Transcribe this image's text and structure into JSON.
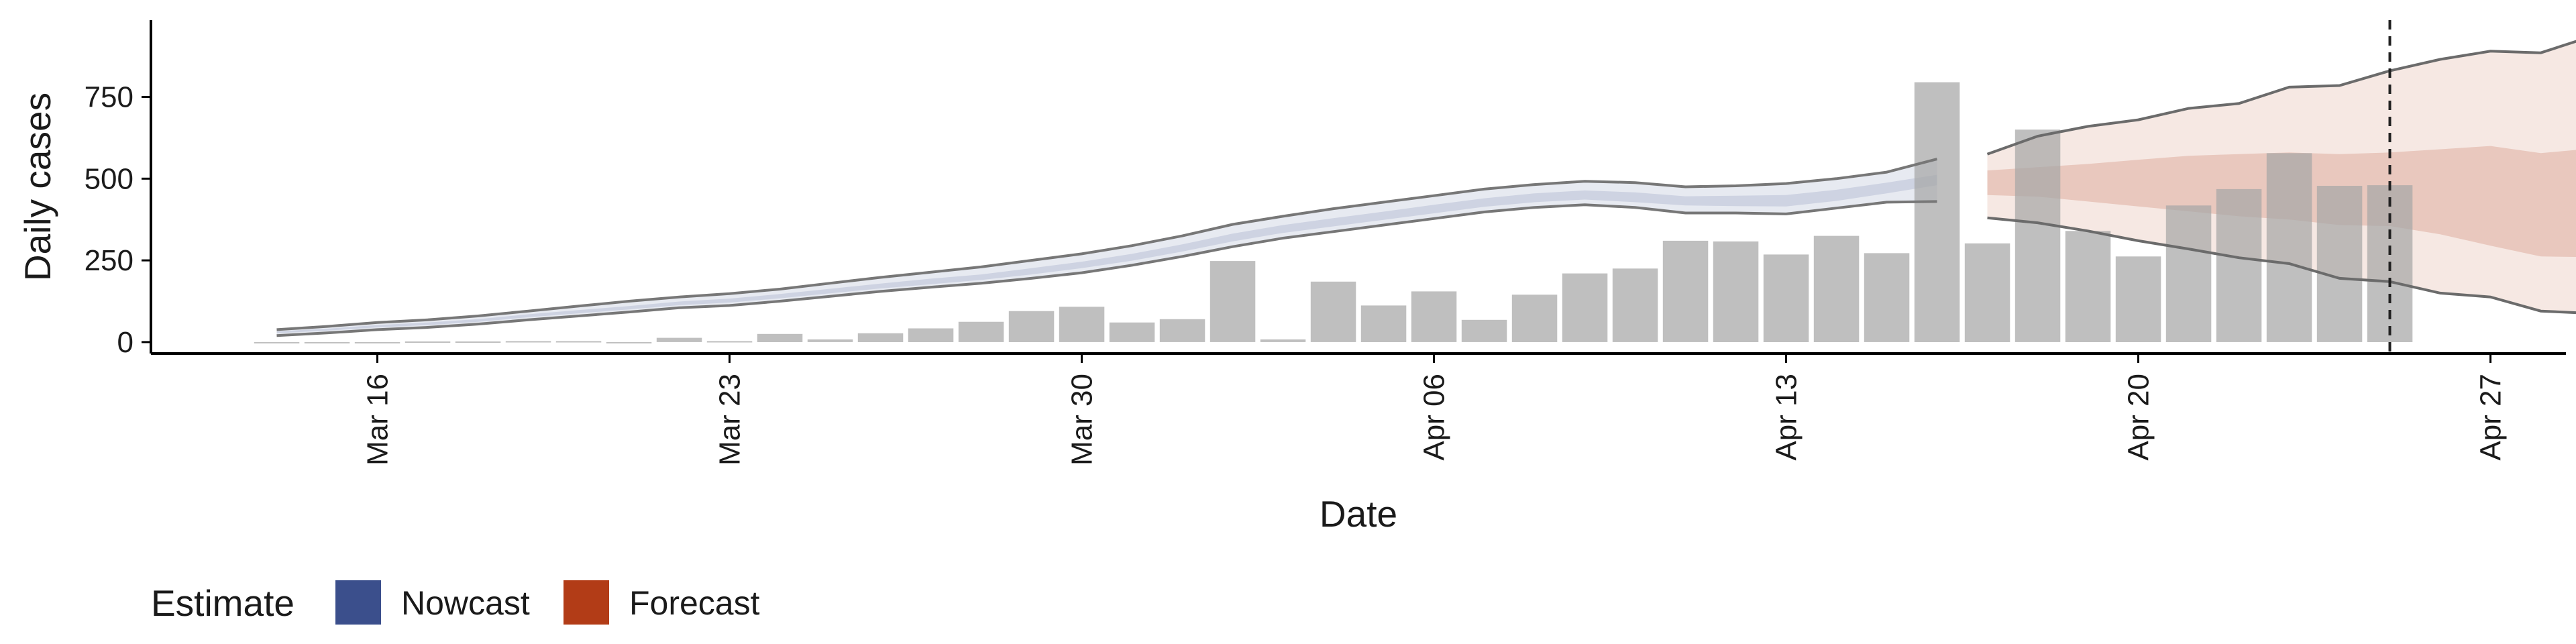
{
  "chart_data": {
    "type": "bar",
    "xlabel": "Date",
    "ylabel": "Daily cases",
    "ylim": [
      -35,
      985
    ],
    "y_ticks": [
      0,
      250,
      500,
      750
    ],
    "x_start_date": "2020-03-12",
    "x_range_days": [
      -0.5,
      47.5
    ],
    "x_tick_labels": [
      {
        "date": "2020-03-16",
        "label": "Mar 16"
      },
      {
        "date": "2020-03-23",
        "label": "Mar 23"
      },
      {
        "date": "2020-03-30",
        "label": "Mar 30"
      },
      {
        "date": "2020-04-06",
        "label": "Apr 06"
      },
      {
        "date": "2020-04-13",
        "label": "Apr 13"
      },
      {
        "date": "2020-04-20",
        "label": "Apr 20"
      },
      {
        "date": "2020-04-27",
        "label": "Apr 27"
      }
    ],
    "reported_cases": {
      "dates": [
        "2020-03-14",
        "2020-03-15",
        "2020-03-16",
        "2020-03-17",
        "2020-03-18",
        "2020-03-19",
        "2020-03-20",
        "2020-03-21",
        "2020-03-22",
        "2020-03-23",
        "2020-03-24",
        "2020-03-25",
        "2020-03-26",
        "2020-03-27",
        "2020-03-28",
        "2020-03-29",
        "2020-03-30",
        "2020-03-31",
        "2020-04-01",
        "2020-04-02",
        "2020-04-03",
        "2020-04-04",
        "2020-04-05",
        "2020-04-06",
        "2020-04-07",
        "2020-04-08",
        "2020-04-09",
        "2020-04-10",
        "2020-04-11",
        "2020-04-12",
        "2020-04-13",
        "2020-04-14",
        "2020-04-15",
        "2020-04-16",
        "2020-04-17",
        "2020-04-18",
        "2020-04-19",
        "2020-04-20",
        "2020-04-21",
        "2020-04-22",
        "2020-04-23",
        "2020-04-24",
        "2020-04-25"
      ],
      "values": [
        0,
        0,
        0,
        2,
        2,
        3,
        3,
        0,
        13,
        3,
        25,
        8,
        27,
        42,
        62,
        95,
        108,
        60,
        70,
        248,
        8,
        185,
        112,
        155,
        68,
        145,
        210,
        225,
        310,
        308,
        268,
        325,
        272,
        795,
        302,
        650,
        340,
        262,
        418,
        468,
        578,
        478,
        480
      ],
      "color": "#a6a6a6"
    },
    "nowcast": {
      "name": "Nowcast",
      "color": "#3b4f8c",
      "dates": [
        "2020-03-14",
        "2020-03-15",
        "2020-03-16",
        "2020-03-17",
        "2020-03-18",
        "2020-03-19",
        "2020-03-20",
        "2020-03-21",
        "2020-03-22",
        "2020-03-23",
        "2020-03-24",
        "2020-03-25",
        "2020-03-26",
        "2020-03-27",
        "2020-03-28",
        "2020-03-29",
        "2020-03-30",
        "2020-03-31",
        "2020-04-01",
        "2020-04-02",
        "2020-04-03",
        "2020-04-04",
        "2020-04-05",
        "2020-04-06",
        "2020-04-07",
        "2020-04-08",
        "2020-04-09",
        "2020-04-10",
        "2020-04-11",
        "2020-04-12",
        "2020-04-13",
        "2020-04-14",
        "2020-04-15",
        "2020-04-16"
      ],
      "lower90": [
        20,
        28,
        38,
        45,
        55,
        68,
        80,
        92,
        105,
        112,
        125,
        140,
        155,
        168,
        180,
        195,
        212,
        235,
        262,
        292,
        318,
        338,
        358,
        378,
        398,
        412,
        420,
        412,
        395,
        395,
        392,
        410,
        428,
        430
      ],
      "lower50": [
        27,
        35,
        45,
        52,
        62,
        76,
        88,
        100,
        113,
        121,
        134,
        149,
        164,
        177,
        190,
        207,
        226,
        249,
        277,
        308,
        334,
        354,
        374,
        394,
        414,
        428,
        436,
        428,
        418,
        416,
        415,
        432,
        455,
        480
      ],
      "upper50": [
        33,
        41,
        52,
        60,
        70,
        85,
        98,
        110,
        124,
        133,
        147,
        163,
        179,
        194,
        207,
        226,
        246,
        270,
        299,
        332,
        358,
        379,
        399,
        420,
        440,
        455,
        464,
        458,
        446,
        448,
        450,
        466,
        488,
        512
      ],
      "upper90": [
        38,
        48,
        60,
        68,
        80,
        95,
        110,
        125,
        138,
        148,
        162,
        180,
        198,
        214,
        230,
        250,
        270,
        295,
        325,
        360,
        385,
        408,
        428,
        448,
        468,
        482,
        492,
        488,
        475,
        478,
        485,
        500,
        520,
        560
      ]
    },
    "forecast": {
      "name": "Forecast",
      "color": "#b23c17",
      "dates": [
        "2020-04-17",
        "2020-04-18",
        "2020-04-19",
        "2020-04-20",
        "2020-04-21",
        "2020-04-22",
        "2020-04-23",
        "2020-04-24",
        "2020-04-25",
        "2020-04-26",
        "2020-04-27",
        "2020-04-28",
        "2020-04-29",
        "2020-04-30"
      ],
      "lower90": [
        380,
        365,
        340,
        310,
        285,
        258,
        240,
        195,
        185,
        150,
        138,
        95,
        88,
        0
      ],
      "lower50": [
        450,
        445,
        430,
        415,
        400,
        385,
        375,
        358,
        355,
        330,
        295,
        262,
        260,
        200
      ],
      "upper50": [
        525,
        535,
        545,
        558,
        570,
        575,
        580,
        575,
        580,
        590,
        600,
        578,
        592,
        558
      ],
      "upper90": [
        575,
        630,
        660,
        680,
        715,
        730,
        780,
        785,
        830,
        865,
        890,
        885,
        935,
        885
      ]
    },
    "reference_line_date": "2020-04-25",
    "legend": {
      "title": "Estimate",
      "position": "bottom-left",
      "entries": [
        "Nowcast",
        "Forecast"
      ]
    },
    "grid": false
  }
}
